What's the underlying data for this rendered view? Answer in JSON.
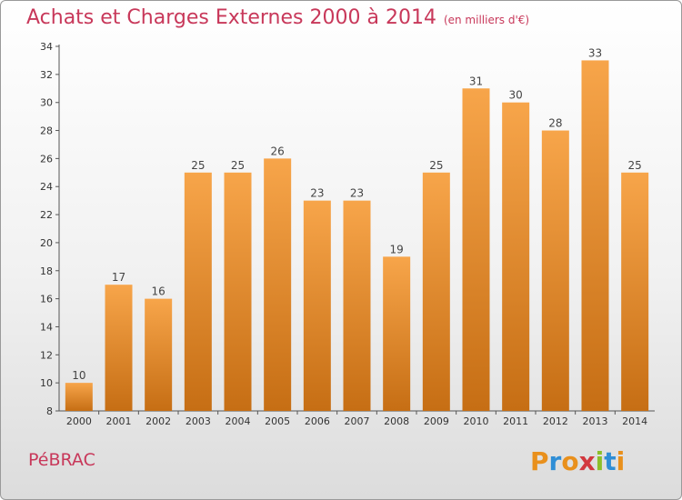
{
  "chart_data": {
    "type": "bar",
    "title": "Achats et Charges Externes 2000 à 2014",
    "subtitle": "(en milliers d'€)",
    "categories": [
      "2000",
      "2001",
      "2002",
      "2003",
      "2004",
      "2005",
      "2006",
      "2007",
      "2008",
      "2009",
      "2010",
      "2011",
      "2012",
      "2013",
      "2014"
    ],
    "values": [
      10,
      17,
      16,
      25,
      25,
      26,
      23,
      23,
      19,
      25,
      31,
      30,
      28,
      33,
      25
    ],
    "ylim": [
      8,
      34
    ],
    "yticks": [
      8,
      10,
      12,
      14,
      16,
      18,
      20,
      22,
      24,
      26,
      28,
      30,
      32,
      34
    ],
    "grid": false,
    "data_labels": true
  },
  "commune": "PéBRAC",
  "logo": {
    "letters": [
      "P",
      "r",
      "o",
      "x",
      "i",
      "t",
      "i"
    ],
    "colors": [
      "#e9901c",
      "#2f8ed6",
      "#e9901c",
      "#d2383e",
      "#8cbf2a",
      "#2f8ed6",
      "#e9901c"
    ]
  },
  "colors": {
    "bar_light": "#f7a54a",
    "bar_dark": "#c66e14",
    "title": "#c8385a",
    "axis": "#555555"
  }
}
